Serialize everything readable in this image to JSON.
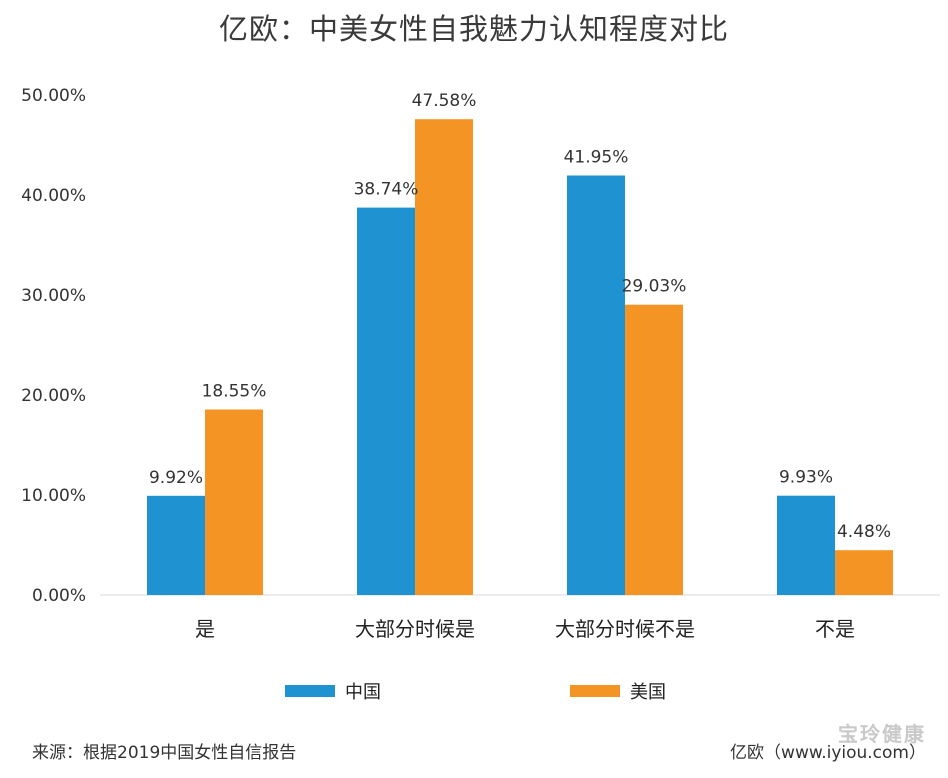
{
  "chart_data": {
    "type": "bar",
    "title": "亿欧：中美女性自我魅力认知程度对比",
    "categories": [
      "是",
      "大部分时候是",
      "大部分时候不是",
      "不是"
    ],
    "series": [
      {
        "name": "中国",
        "values": [
          9.92,
          38.74,
          41.95,
          9.93
        ],
        "labels": [
          "9.92%",
          "38.74%",
          "41.95%",
          "9.93%"
        ],
        "color": "#1f93d1"
      },
      {
        "name": "美国",
        "values": [
          18.55,
          47.58,
          29.03,
          4.48
        ],
        "labels": [
          "18.55%",
          "47.58%",
          "29.03%",
          "4.48%"
        ],
        "color": "#f39424"
      }
    ],
    "ylim": [
      0,
      50
    ],
    "yticks": [
      0,
      10,
      20,
      30,
      40,
      50
    ],
    "ytick_labels": [
      "0.00%",
      "10.00%",
      "20.00%",
      "30.00%",
      "40.00%",
      "50.00%"
    ],
    "xlabel": "",
    "ylabel": "",
    "grid": false,
    "legend_position": "bottom"
  },
  "footer": {
    "source": "来源：根据2019中国女性自信报告",
    "credit": "亿欧（www.iyiou.com）",
    "watermark": "宝玲健康"
  }
}
